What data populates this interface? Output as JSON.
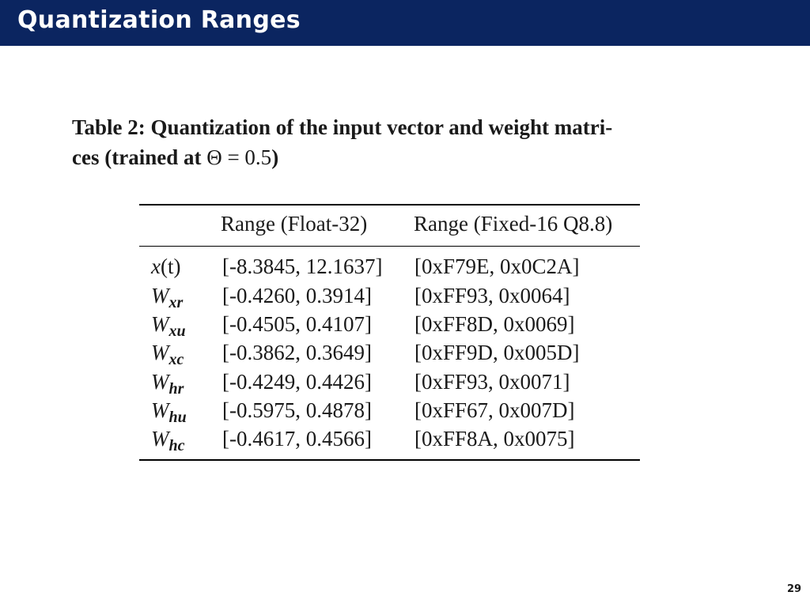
{
  "slide": {
    "title": "Quantization Ranges",
    "page_number": "29"
  },
  "caption": {
    "line1": "Table 2: Quantization of the input vector and weight matri-",
    "line2_prefix": "ces (trained at ",
    "line2_theta": "Θ = 0.5",
    "line2_suffix": ")"
  },
  "table": {
    "headers": [
      "",
      "Range (Float-32)",
      "Range (Fixed-16 Q8.8)"
    ],
    "rows": [
      {
        "base": "x",
        "sub": "",
        "suffix": "(t)",
        "float": "[-8.3845, 12.1637]",
        "fixed": "[0xF79E, 0x0C2A]"
      },
      {
        "base": "W",
        "sub": "xr",
        "suffix": "",
        "float": "[-0.4260, 0.3914]",
        "fixed": "[0xFF93, 0x0064]"
      },
      {
        "base": "W",
        "sub": "xu",
        "suffix": "",
        "float": "[-0.4505, 0.4107]",
        "fixed": "[0xFF8D, 0x0069]"
      },
      {
        "base": "W",
        "sub": "xc",
        "suffix": "",
        "float": "[-0.3862, 0.3649]",
        "fixed": "[0xFF9D, 0x005D]"
      },
      {
        "base": "W",
        "sub": "hr",
        "suffix": "",
        "float": "[-0.4249, 0.4426]",
        "fixed": "[0xFF93, 0x0071]"
      },
      {
        "base": "W",
        "sub": "hu",
        "suffix": "",
        "float": "[-0.5975, 0.4878]",
        "fixed": "[0xFF67, 0x007D]"
      },
      {
        "base": "W",
        "sub": "hc",
        "suffix": "",
        "float": "[-0.4617, 0.4566]",
        "fixed": "[0xFF8A, 0x0075]"
      }
    ]
  },
  "colors": {
    "title_bar": "#0b2560",
    "title_text": "#ffffff",
    "body_text": "#1a1a1a"
  }
}
